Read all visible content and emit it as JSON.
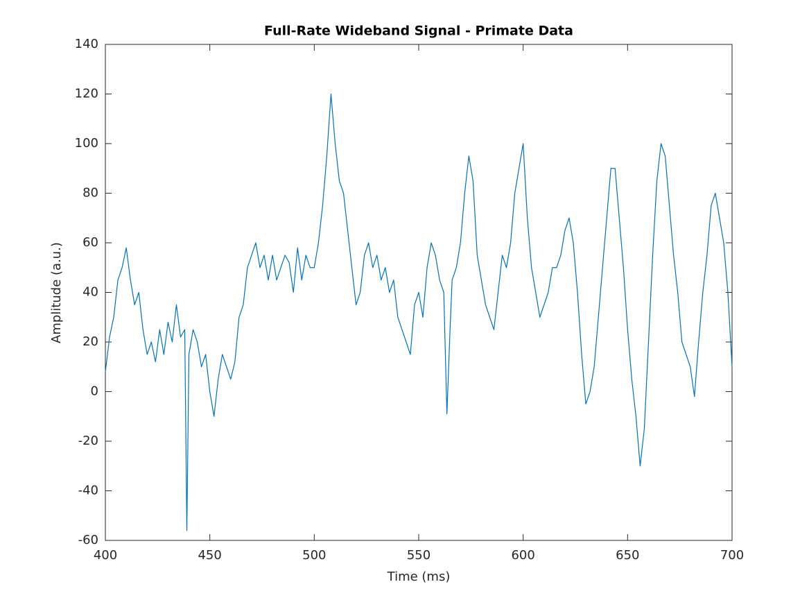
{
  "chart_data": {
    "type": "line",
    "title": "Full-Rate Wideband Signal - Primate Data",
    "x_label": "Time (ms)",
    "y_label": "Amplitude (a.u.)",
    "color": "#0072BD",
    "x": [
      400,
      402,
      404,
      406,
      408,
      410,
      412,
      414,
      416,
      418,
      420,
      422,
      424,
      426,
      428,
      430,
      432,
      434,
      436,
      438,
      439,
      440,
      442,
      444,
      446,
      448,
      450,
      452,
      454,
      456,
      458,
      460,
      462,
      464,
      466,
      468,
      470,
      472,
      474,
      476,
      478,
      480,
      482,
      484,
      486,
      488,
      490,
      492,
      494,
      496,
      498,
      500,
      502,
      504,
      506,
      508,
      510,
      512,
      514,
      516,
      518,
      520,
      522,
      524,
      526,
      528,
      530,
      532,
      534,
      536,
      538,
      540,
      542,
      544,
      546,
      548,
      550,
      552,
      554,
      556,
      558,
      560,
      562,
      563.5,
      565,
      566,
      568,
      570,
      572,
      574,
      576,
      578,
      580,
      582,
      584,
      586,
      588,
      590,
      592,
      594,
      596,
      598,
      600,
      602,
      604,
      606,
      608,
      610,
      612,
      614,
      616,
      618,
      620,
      622,
      624,
      626,
      628,
      630,
      632,
      634,
      636,
      638,
      640,
      642,
      644,
      646,
      648,
      650,
      652,
      654,
      656,
      658,
      660,
      662,
      664,
      666,
      668,
      670,
      672,
      674,
      676,
      678,
      680,
      682,
      684,
      686,
      688,
      690,
      692,
      694,
      696,
      698,
      700
    ],
    "values": [
      8,
      22,
      30,
      45,
      50,
      58,
      45,
      35,
      40,
      25,
      15,
      20,
      12,
      25,
      15,
      28,
      20,
      35,
      22,
      25,
      -56,
      15,
      25,
      20,
      10,
      15,
      0,
      -10,
      5,
      15,
      10,
      5,
      12,
      30,
      35,
      50,
      55,
      60,
      50,
      55,
      45,
      55,
      45,
      50,
      55,
      52,
      40,
      58,
      45,
      55,
      50,
      50,
      60,
      75,
      95,
      120,
      100,
      85,
      80,
      65,
      50,
      35,
      40,
      55,
      60,
      50,
      55,
      45,
      50,
      40,
      45,
      30,
      25,
      20,
      15,
      35,
      40,
      30,
      50,
      60,
      55,
      45,
      40,
      -9,
      25,
      45,
      50,
      60,
      80,
      95,
      85,
      55,
      45,
      35,
      30,
      25,
      40,
      55,
      50,
      60,
      80,
      90,
      100,
      70,
      50,
      40,
      30,
      35,
      40,
      50,
      50,
      55,
      65,
      70,
      60,
      40,
      15,
      -5,
      0,
      10,
      30,
      50,
      70,
      90,
      90,
      70,
      50,
      25,
      5,
      -10,
      -30,
      -15,
      20,
      55,
      85,
      100,
      95,
      75,
      55,
      40,
      20,
      15,
      10,
      -2,
      20,
      40,
      55,
      75,
      80,
      70,
      60,
      40,
      10
    ],
    "xlim": [
      400,
      700
    ],
    "xticks": [
      400,
      450,
      500,
      550,
      600,
      650,
      700
    ],
    "ylim": [
      -60,
      140
    ],
    "yticks": [
      -60,
      -40,
      -20,
      0,
      20,
      40,
      60,
      80,
      100,
      120,
      140
    ]
  }
}
